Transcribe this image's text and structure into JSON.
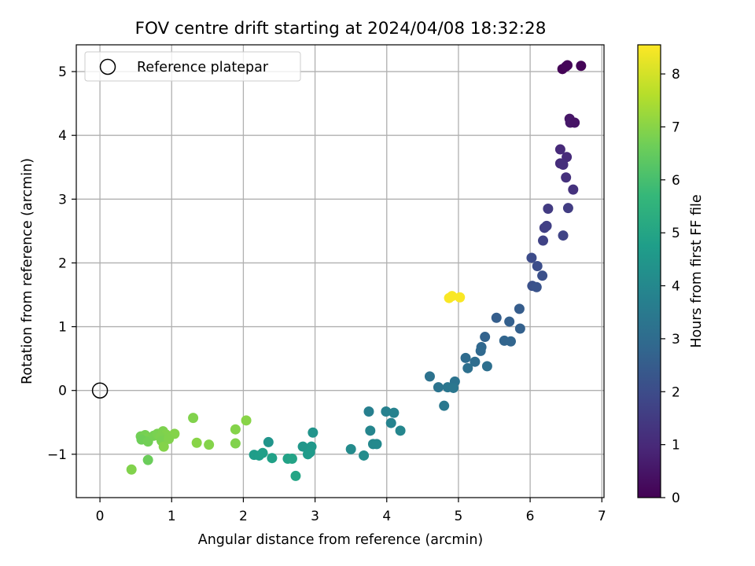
{
  "chart_data": {
    "type": "scatter",
    "title": "FOV centre drift starting at 2024/04/08 18:32:28",
    "xlabel": "Angular distance from reference (arcmin)",
    "ylabel": "Rotation from reference (arcmin)",
    "xlim": [
      -0.33,
      7.03
    ],
    "ylim": [
      -1.68,
      5.42
    ],
    "x_ticks": [
      0,
      1,
      2,
      3,
      4,
      5,
      6,
      7
    ],
    "y_ticks": [
      -1,
      0,
      1,
      2,
      3,
      4,
      5
    ],
    "grid": true,
    "legend": {
      "placement": "top-left",
      "entries": [
        {
          "label": "Reference platepar",
          "marker": "open-circle"
        }
      ]
    },
    "reference_point": {
      "x": 0,
      "y": 0
    },
    "colorbar": {
      "label": "Hours from first FF file",
      "colormap": "viridis",
      "range": [
        0,
        8.55
      ],
      "ticks": [
        0,
        1,
        2,
        3,
        4,
        5,
        6,
        7,
        8
      ]
    },
    "colormap_stops": [
      "#440154",
      "#482878",
      "#3e4989",
      "#31688e",
      "#26828e",
      "#1f9e89",
      "#35b779",
      "#6ece58",
      "#b5de2b",
      "#fde725"
    ],
    "points": [
      {
        "x": 6.45,
        "y": 5.04,
        "c": 0.05
      },
      {
        "x": 6.52,
        "y": 5.1,
        "c": 0.1
      },
      {
        "x": 6.5,
        "y": 5.08,
        "c": 0.12
      },
      {
        "x": 6.71,
        "y": 5.09,
        "c": 0.08
      },
      {
        "x": 6.55,
        "y": 4.26,
        "c": 0.5
      },
      {
        "x": 6.56,
        "y": 4.2,
        "c": 0.55
      },
      {
        "x": 6.62,
        "y": 4.2,
        "c": 0.45
      },
      {
        "x": 6.42,
        "y": 3.78,
        "c": 1.0
      },
      {
        "x": 6.51,
        "y": 3.66,
        "c": 1.05
      },
      {
        "x": 6.42,
        "y": 3.56,
        "c": 1.1
      },
      {
        "x": 6.46,
        "y": 3.54,
        "c": 1.15
      },
      {
        "x": 6.5,
        "y": 3.34,
        "c": 1.2
      },
      {
        "x": 6.6,
        "y": 3.15,
        "c": 1.25
      },
      {
        "x": 6.25,
        "y": 2.85,
        "c": 1.5
      },
      {
        "x": 6.53,
        "y": 2.86,
        "c": 1.55
      },
      {
        "x": 6.2,
        "y": 2.55,
        "c": 1.6
      },
      {
        "x": 6.23,
        "y": 2.58,
        "c": 1.65
      },
      {
        "x": 6.18,
        "y": 2.35,
        "c": 1.7
      },
      {
        "x": 6.46,
        "y": 2.43,
        "c": 1.75
      },
      {
        "x": 6.02,
        "y": 2.08,
        "c": 2.0
      },
      {
        "x": 6.1,
        "y": 1.95,
        "c": 2.05
      },
      {
        "x": 6.17,
        "y": 1.8,
        "c": 2.1
      },
      {
        "x": 6.03,
        "y": 1.64,
        "c": 2.15
      },
      {
        "x": 6.09,
        "y": 1.62,
        "c": 2.2
      },
      {
        "x": 5.85,
        "y": 1.28,
        "c": 2.5
      },
      {
        "x": 5.53,
        "y": 1.14,
        "c": 2.55
      },
      {
        "x": 5.71,
        "y": 1.08,
        "c": 2.6
      },
      {
        "x": 5.86,
        "y": 0.97,
        "c": 2.65
      },
      {
        "x": 5.37,
        "y": 0.84,
        "c": 2.7
      },
      {
        "x": 5.64,
        "y": 0.78,
        "c": 2.75
      },
      {
        "x": 5.73,
        "y": 0.77,
        "c": 2.8
      },
      {
        "x": 5.32,
        "y": 0.68,
        "c": 2.85
      },
      {
        "x": 5.31,
        "y": 0.62,
        "c": 2.9
      },
      {
        "x": 5.1,
        "y": 0.51,
        "c": 3.0
      },
      {
        "x": 5.23,
        "y": 0.45,
        "c": 3.05
      },
      {
        "x": 5.4,
        "y": 0.38,
        "c": 3.1
      },
      {
        "x": 5.13,
        "y": 0.35,
        "c": 3.15
      },
      {
        "x": 4.6,
        "y": 0.22,
        "c": 3.2
      },
      {
        "x": 4.95,
        "y": 0.14,
        "c": 3.25
      },
      {
        "x": 4.72,
        "y": 0.05,
        "c": 3.3
      },
      {
        "x": 4.85,
        "y": 0.05,
        "c": 3.35
      },
      {
        "x": 4.93,
        "y": 0.04,
        "c": 3.4
      },
      {
        "x": 4.8,
        "y": -0.24,
        "c": 3.45
      },
      {
        "x": 3.75,
        "y": -0.33,
        "c": 3.7
      },
      {
        "x": 3.99,
        "y": -0.33,
        "c": 3.75
      },
      {
        "x": 4.1,
        "y": -0.35,
        "c": 3.8
      },
      {
        "x": 4.06,
        "y": -0.51,
        "c": 3.85
      },
      {
        "x": 3.77,
        "y": -0.63,
        "c": 3.9
      },
      {
        "x": 4.19,
        "y": -0.63,
        "c": 3.95
      },
      {
        "x": 3.81,
        "y": -0.84,
        "c": 4.0
      },
      {
        "x": 3.86,
        "y": -0.84,
        "c": 4.05
      },
      {
        "x": 3.5,
        "y": -0.92,
        "c": 4.1
      },
      {
        "x": 3.68,
        "y": -1.02,
        "c": 4.15
      },
      {
        "x": 2.97,
        "y": -0.66,
        "c": 4.4
      },
      {
        "x": 2.35,
        "y": -0.81,
        "c": 4.45
      },
      {
        "x": 2.83,
        "y": -0.88,
        "c": 4.5
      },
      {
        "x": 2.95,
        "y": -0.88,
        "c": 4.55
      },
      {
        "x": 2.93,
        "y": -0.97,
        "c": 4.6
      },
      {
        "x": 2.9,
        "y": -1.0,
        "c": 4.65
      },
      {
        "x": 2.15,
        "y": -1.01,
        "c": 4.7
      },
      {
        "x": 2.22,
        "y": -1.02,
        "c": 4.75
      },
      {
        "x": 2.27,
        "y": -0.98,
        "c": 4.8
      },
      {
        "x": 2.4,
        "y": -1.06,
        "c": 4.85
      },
      {
        "x": 2.62,
        "y": -1.07,
        "c": 4.9
      },
      {
        "x": 2.68,
        "y": -1.07,
        "c": 4.95
      },
      {
        "x": 2.73,
        "y": -1.34,
        "c": 5.0
      },
      {
        "x": 1.3,
        "y": -0.43,
        "c": 6.9
      },
      {
        "x": 2.04,
        "y": -0.47,
        "c": 7.0
      },
      {
        "x": 1.89,
        "y": -0.61,
        "c": 6.95
      },
      {
        "x": 1.89,
        "y": -0.83,
        "c": 6.9
      },
      {
        "x": 1.35,
        "y": -0.82,
        "c": 7.0
      },
      {
        "x": 1.52,
        "y": -0.85,
        "c": 6.95
      },
      {
        "x": 0.57,
        "y": -0.72,
        "c": 6.7
      },
      {
        "x": 0.63,
        "y": -0.7,
        "c": 6.75
      },
      {
        "x": 0.66,
        "y": -0.75,
        "c": 6.8
      },
      {
        "x": 0.58,
        "y": -0.77,
        "c": 6.65
      },
      {
        "x": 0.67,
        "y": -0.8,
        "c": 6.7
      },
      {
        "x": 0.75,
        "y": -0.71,
        "c": 6.75
      },
      {
        "x": 0.8,
        "y": -0.68,
        "c": 6.8
      },
      {
        "x": 0.88,
        "y": -0.64,
        "c": 6.85
      },
      {
        "x": 0.92,
        "y": -0.69,
        "c": 6.9
      },
      {
        "x": 1.04,
        "y": -0.68,
        "c": 6.95
      },
      {
        "x": 0.84,
        "y": -0.73,
        "c": 6.85
      },
      {
        "x": 0.86,
        "y": -0.79,
        "c": 6.8
      },
      {
        "x": 0.89,
        "y": -0.88,
        "c": 6.95
      },
      {
        "x": 0.96,
        "y": -0.76,
        "c": 6.9
      },
      {
        "x": 0.67,
        "y": -1.09,
        "c": 6.6
      },
      {
        "x": 0.44,
        "y": -1.24,
        "c": 6.9
      },
      {
        "x": 4.87,
        "y": 1.45,
        "c": 8.5
      },
      {
        "x": 4.91,
        "y": 1.48,
        "c": 8.5
      },
      {
        "x": 5.02,
        "y": 1.46,
        "c": 8.5
      }
    ]
  }
}
